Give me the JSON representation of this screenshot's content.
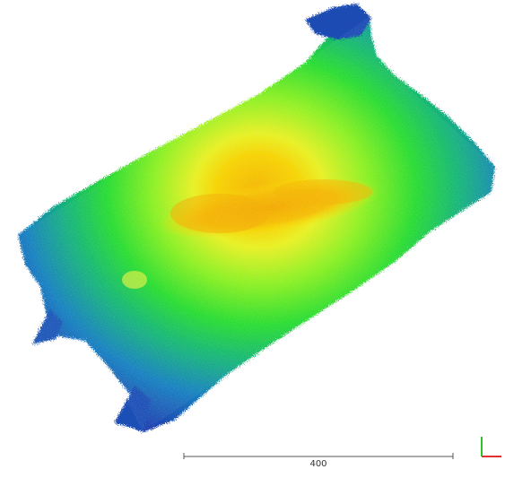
{
  "scale_bar": {
    "label": "400"
  },
  "colors": {
    "background": "#ffffff",
    "colormap": [
      "#1e3fb0",
      "#1f70c8",
      "#10a8a0",
      "#20d040",
      "#6ef020",
      "#d8f020",
      "#f6e000",
      "#f4b400"
    ],
    "axis_x": "#e03030",
    "axis_y": "#30c030"
  },
  "icons": {
    "axis_gizmo": "axis-triad-icon"
  }
}
